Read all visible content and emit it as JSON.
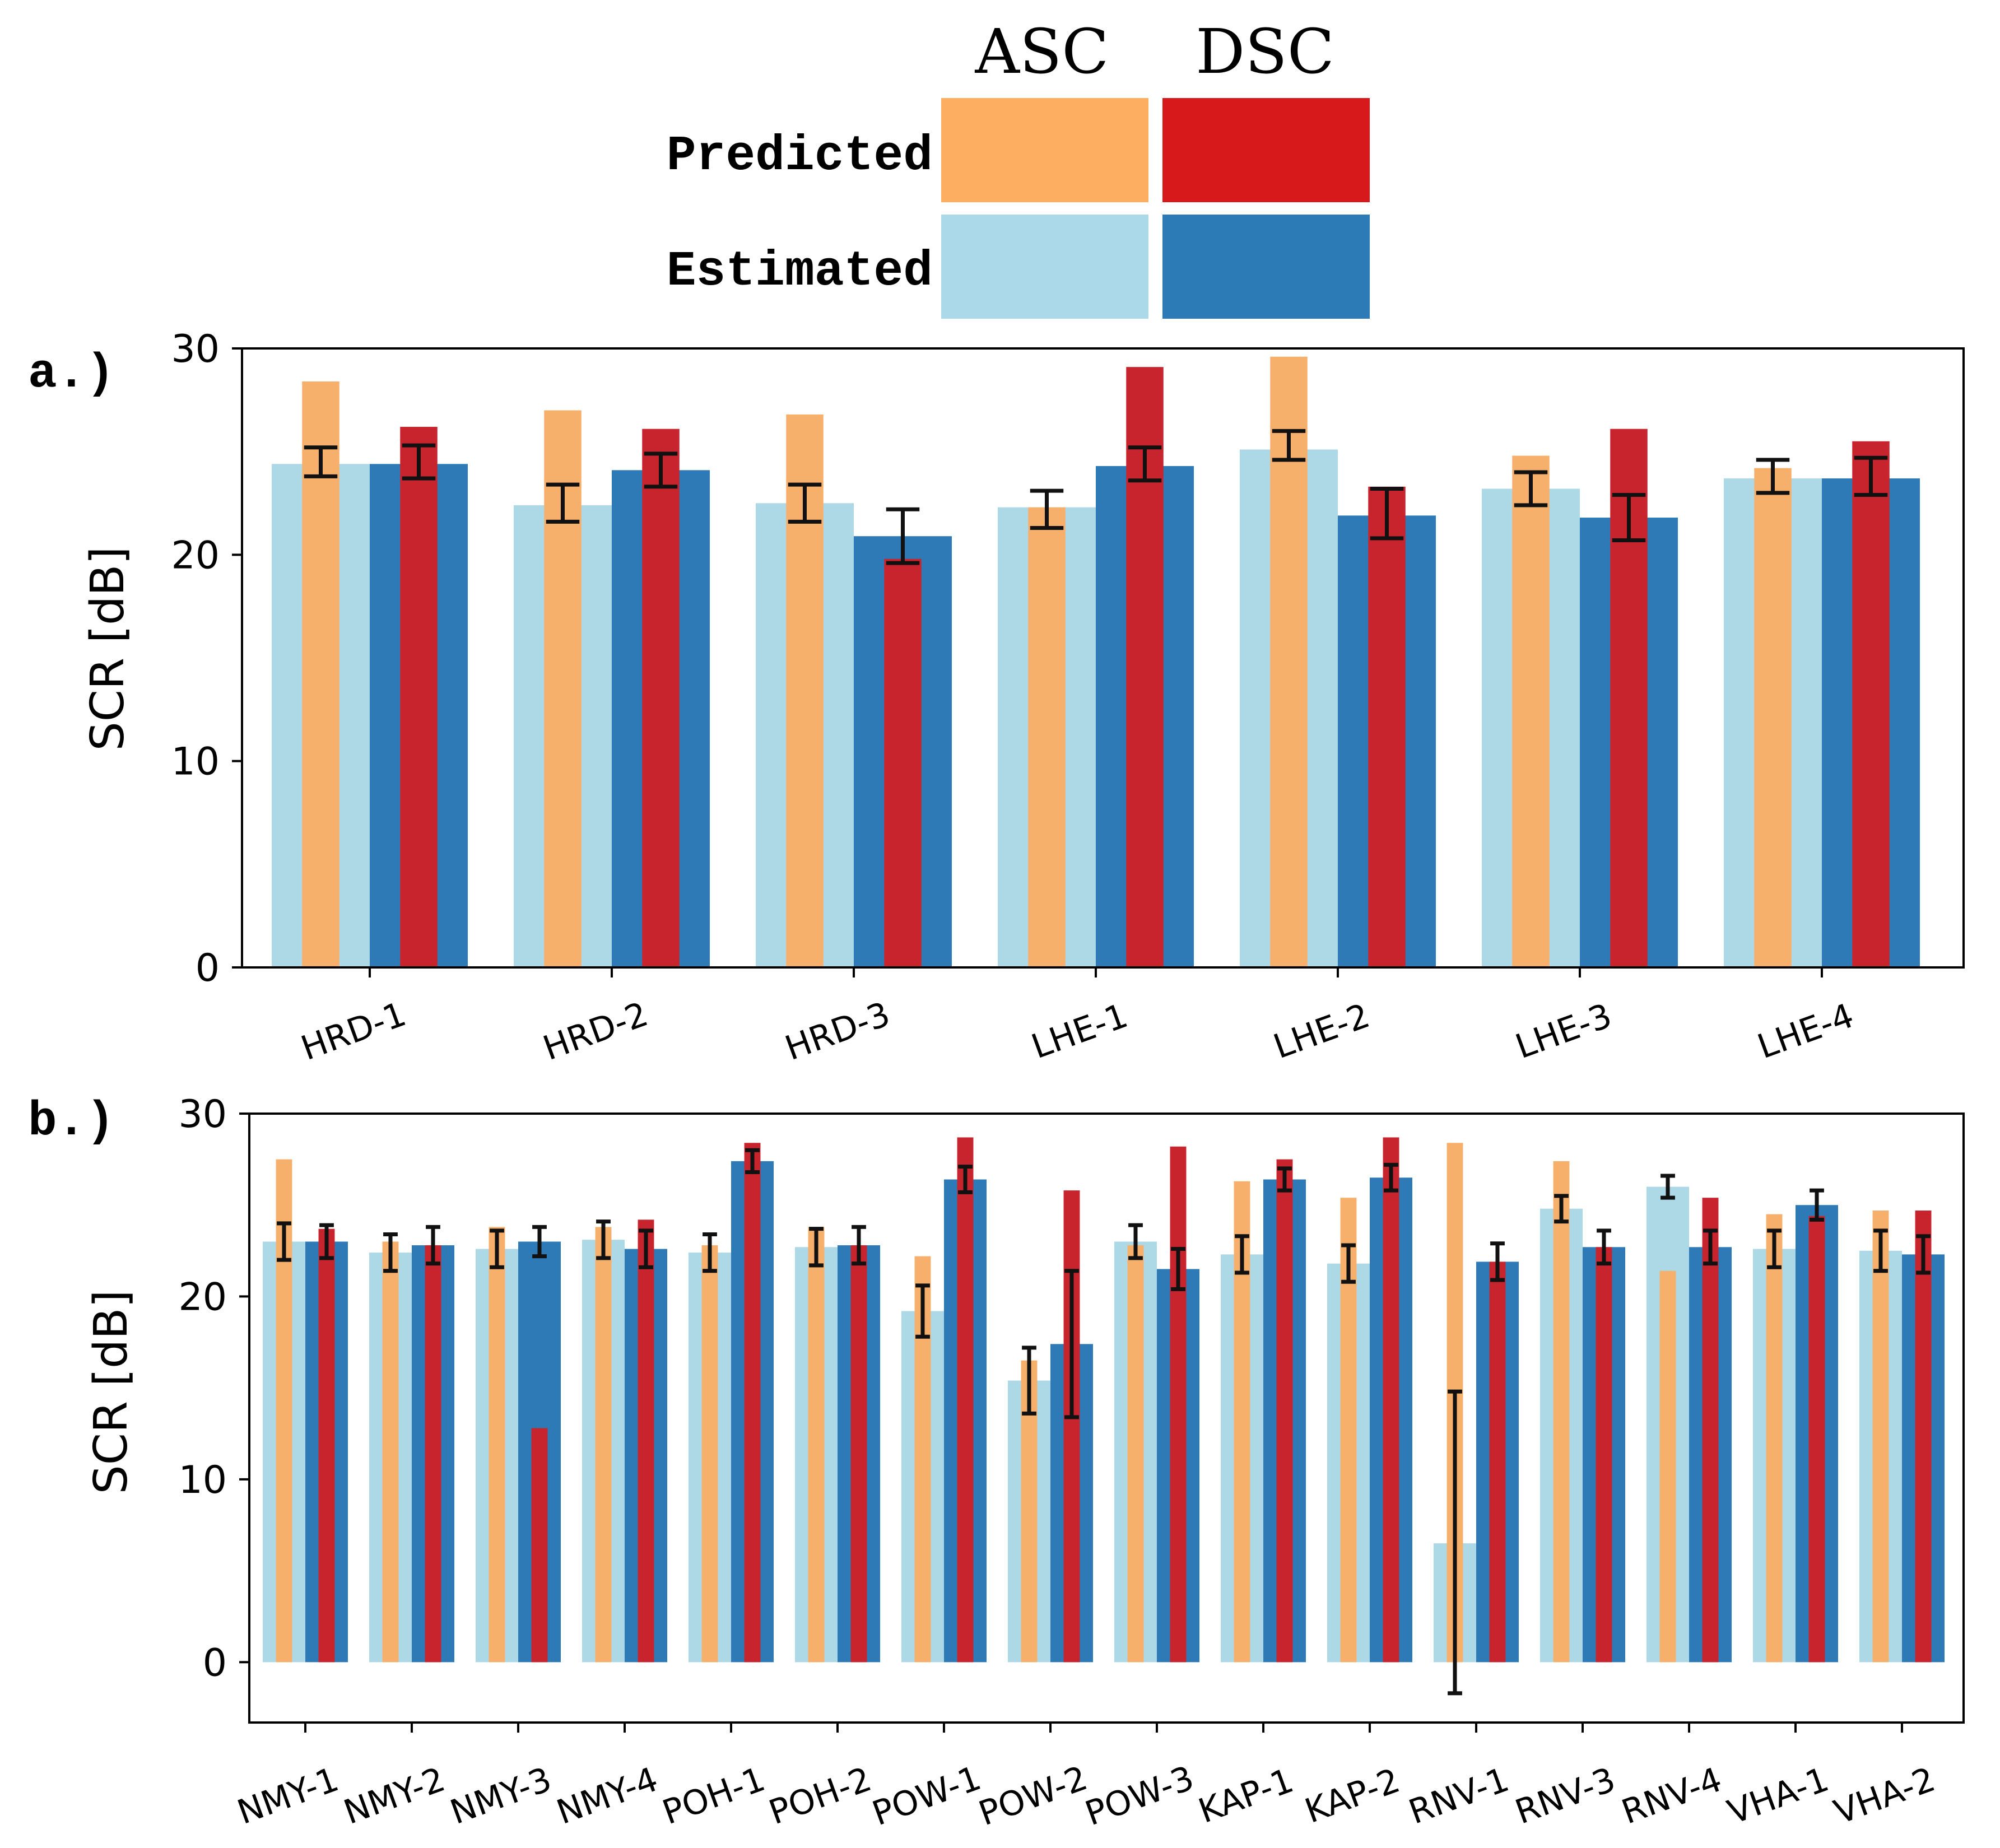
{
  "chart_data": [
    {
      "panel": "a.)",
      "type": "bar",
      "ylabel": "SCR [dB]",
      "ylim": [
        0,
        30
      ],
      "yticks": [
        0,
        10,
        20,
        30
      ],
      "categories": [
        "HRD-1",
        "HRD-2",
        "HRD-3",
        "LHE-1",
        "LHE-2",
        "LHE-3",
        "LHE-4"
      ],
      "series": [
        {
          "name": "ASC Estimated",
          "values": [
            24.4,
            22.4,
            22.5,
            22.3,
            25.1,
            23.2,
            23.7
          ]
        },
        {
          "name": "ASC Predicted",
          "values": [
            28.4,
            27.0,
            26.8,
            22.3,
            29.6,
            24.8,
            24.2
          ],
          "err": [
            24.5,
            22.5,
            22.5,
            22.2,
            25.3,
            23.2,
            23.8
          ],
          "err_lo": [
            23.8,
            21.6,
            21.6,
            21.3,
            24.6,
            22.4,
            23.0
          ],
          "err_hi": [
            25.2,
            23.4,
            23.4,
            23.1,
            26.0,
            24.0,
            24.6
          ]
        },
        {
          "name": "DSC Estimated",
          "values": [
            24.4,
            24.1,
            20.9,
            24.3,
            21.9,
            21.8,
            23.7
          ]
        },
        {
          "name": "DSC Predicted",
          "values": [
            26.2,
            26.1,
            19.8,
            29.1,
            23.3,
            26.1,
            25.5
          ],
          "err": [
            24.5,
            24.1,
            20.9,
            24.4,
            22.0,
            21.8,
            23.8
          ],
          "err_lo": [
            23.7,
            23.3,
            19.6,
            23.6,
            20.8,
            20.7,
            22.9
          ],
          "err_hi": [
            25.3,
            24.9,
            22.2,
            25.2,
            23.2,
            22.9,
            24.7
          ]
        }
      ]
    },
    {
      "panel": "b.)",
      "type": "bar",
      "ylabel": "SCR [dB]",
      "ylim": [
        -3.3,
        30
      ],
      "yticks": [
        0,
        10,
        20,
        30
      ],
      "categories": [
        "NMY-1",
        "NMY-2",
        "NMY-3",
        "NMY-4",
        "POH-1",
        "POH-2",
        "POW-1",
        "POW-2",
        "POW-3",
        "KAP-1",
        "KAP-2",
        "RNV-1",
        "RNV-3",
        "RNV-4",
        "VHA-1",
        "VHA-2"
      ],
      "series": [
        {
          "name": "ASC Estimated",
          "values": [
            23.0,
            22.4,
            22.6,
            23.1,
            22.4,
            22.7,
            19.2,
            15.4,
            23.0,
            22.3,
            21.8,
            6.5,
            24.8,
            26.0,
            22.6,
            22.5
          ]
        },
        {
          "name": "ASC Predicted",
          "values": [
            27.5,
            23.0,
            23.8,
            23.8,
            22.8,
            23.8,
            22.2,
            16.5,
            22.8,
            26.3,
            25.4,
            28.4,
            27.4,
            21.4,
            24.5,
            24.7
          ],
          "err": [
            23.0,
            22.4,
            22.6,
            23.1,
            22.4,
            22.7,
            19.2,
            15.4,
            23.0,
            22.3,
            21.8,
            6.5,
            24.8,
            26.0,
            22.6,
            22.5
          ],
          "err_lo": [
            22.0,
            21.4,
            21.6,
            22.1,
            21.4,
            21.7,
            17.8,
            13.6,
            22.1,
            21.3,
            20.8,
            -1.7,
            24.1,
            25.4,
            21.6,
            21.4
          ],
          "err_hi": [
            24.0,
            23.4,
            23.6,
            24.1,
            23.4,
            23.7,
            20.6,
            17.2,
            23.9,
            23.3,
            22.8,
            14.8,
            25.5,
            26.6,
            23.6,
            23.6
          ]
        },
        {
          "name": "DSC Estimated",
          "values": [
            23.0,
            22.8,
            23.0,
            22.6,
            27.4,
            22.8,
            26.4,
            17.4,
            21.5,
            26.4,
            26.5,
            21.9,
            22.7,
            22.7,
            25.0,
            22.3
          ]
        },
        {
          "name": "DSC Predicted",
          "values": [
            23.7,
            22.8,
            12.8,
            24.2,
            28.4,
            22.8,
            28.7,
            25.8,
            28.2,
            27.5,
            28.7,
            21.9,
            22.7,
            25.4,
            24.4,
            24.7
          ],
          "err": [
            23.0,
            22.8,
            23.0,
            22.6,
            27.4,
            22.8,
            26.4,
            17.4,
            21.5,
            26.4,
            26.5,
            21.9,
            22.7,
            22.7,
            25.0,
            22.3
          ],
          "err_lo": [
            22.1,
            21.8,
            22.2,
            21.6,
            26.8,
            21.8,
            25.7,
            13.4,
            20.4,
            25.8,
            25.8,
            20.9,
            21.8,
            21.8,
            24.2,
            21.3
          ],
          "err_hi": [
            23.9,
            23.8,
            23.8,
            23.6,
            28.0,
            23.8,
            27.1,
            21.4,
            22.6,
            27.0,
            27.2,
            22.9,
            23.6,
            23.6,
            25.8,
            23.3
          ]
        }
      ]
    }
  ],
  "legend": {
    "col_asc": "ASC",
    "col_dsc": "DSC",
    "row_predicted": "Predicted",
    "row_estimated": "Estimated"
  },
  "colors": {
    "asc_predicted": "#f7b06b",
    "dsc_predicted": "#c8242e",
    "asc_estimated": "#add8e6",
    "dsc_estimated": "#2e7ab6",
    "legend_asc_predicted": "#fdae61",
    "legend_dsc_predicted": "#d7191c",
    "legend_asc_estimated": "#abd9e9",
    "legend_dsc_estimated": "#2c7bb6"
  }
}
